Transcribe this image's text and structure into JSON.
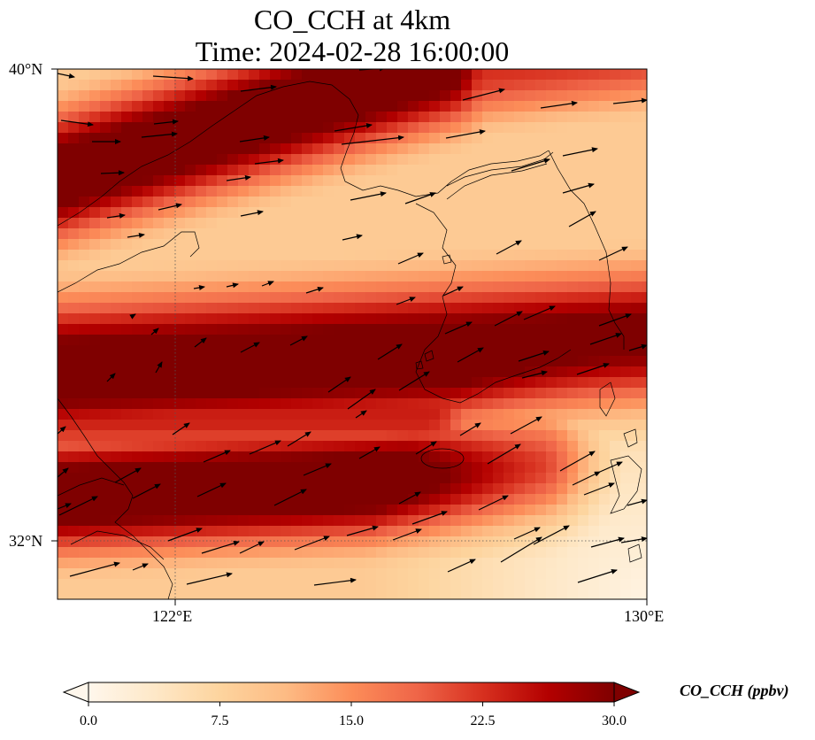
{
  "title": {
    "line1": "CO_CCH at 4km",
    "line2": "Time: 2024-02-28 16:00:00"
  },
  "axes": {
    "lat_ticks": [
      "40°N",
      "32°N"
    ],
    "lon_ticks": [
      "122°E",
      "130°E"
    ],
    "lon_range": [
      120,
      130
    ],
    "lat_range": [
      31,
      40
    ],
    "gridlines": "dotted at 122°E and 32°N"
  },
  "colorbar": {
    "label": "CO_CCH (ppbv)",
    "ticks": [
      "0.0",
      "7.5",
      "15.0",
      "22.5",
      "30.0"
    ],
    "range": [
      0,
      30
    ],
    "extend": "both",
    "colormap": [
      "#fff7ec",
      "#fee8c8",
      "#fdd49e",
      "#fdbb84",
      "#fc8d59",
      "#ef6548",
      "#d7301f",
      "#b30000",
      "#7f0000"
    ]
  },
  "chart_data": {
    "type": "heatmap",
    "variable": "CO_CCH",
    "units": "ppbv",
    "level": "4km",
    "time": "2024-02-28 16:00:00",
    "xlabel": "",
    "ylabel": "",
    "xlim": [
      120,
      130
    ],
    "ylim": [
      31,
      40
    ],
    "x_ticks": [
      122,
      130
    ],
    "y_ticks": [
      32,
      40
    ],
    "value_range": [
      0,
      30
    ],
    "wind_vectors": "overlaid arrows, predominantly blowing toward the east-northeast",
    "high_bands": [
      {
        "description": "northern band along the Bohai coast",
        "peak_ppbv": 30
      },
      {
        "description": "central band across the Yellow Sea to southern Korea",
        "peak_ppbv": 29
      },
      {
        "description": "southern band near the Yangtze estuary",
        "peak_ppbv": 30
      }
    ],
    "low_region": {
      "description": "southeast toward Kyushu",
      "min_ppbv": 1
    }
  }
}
